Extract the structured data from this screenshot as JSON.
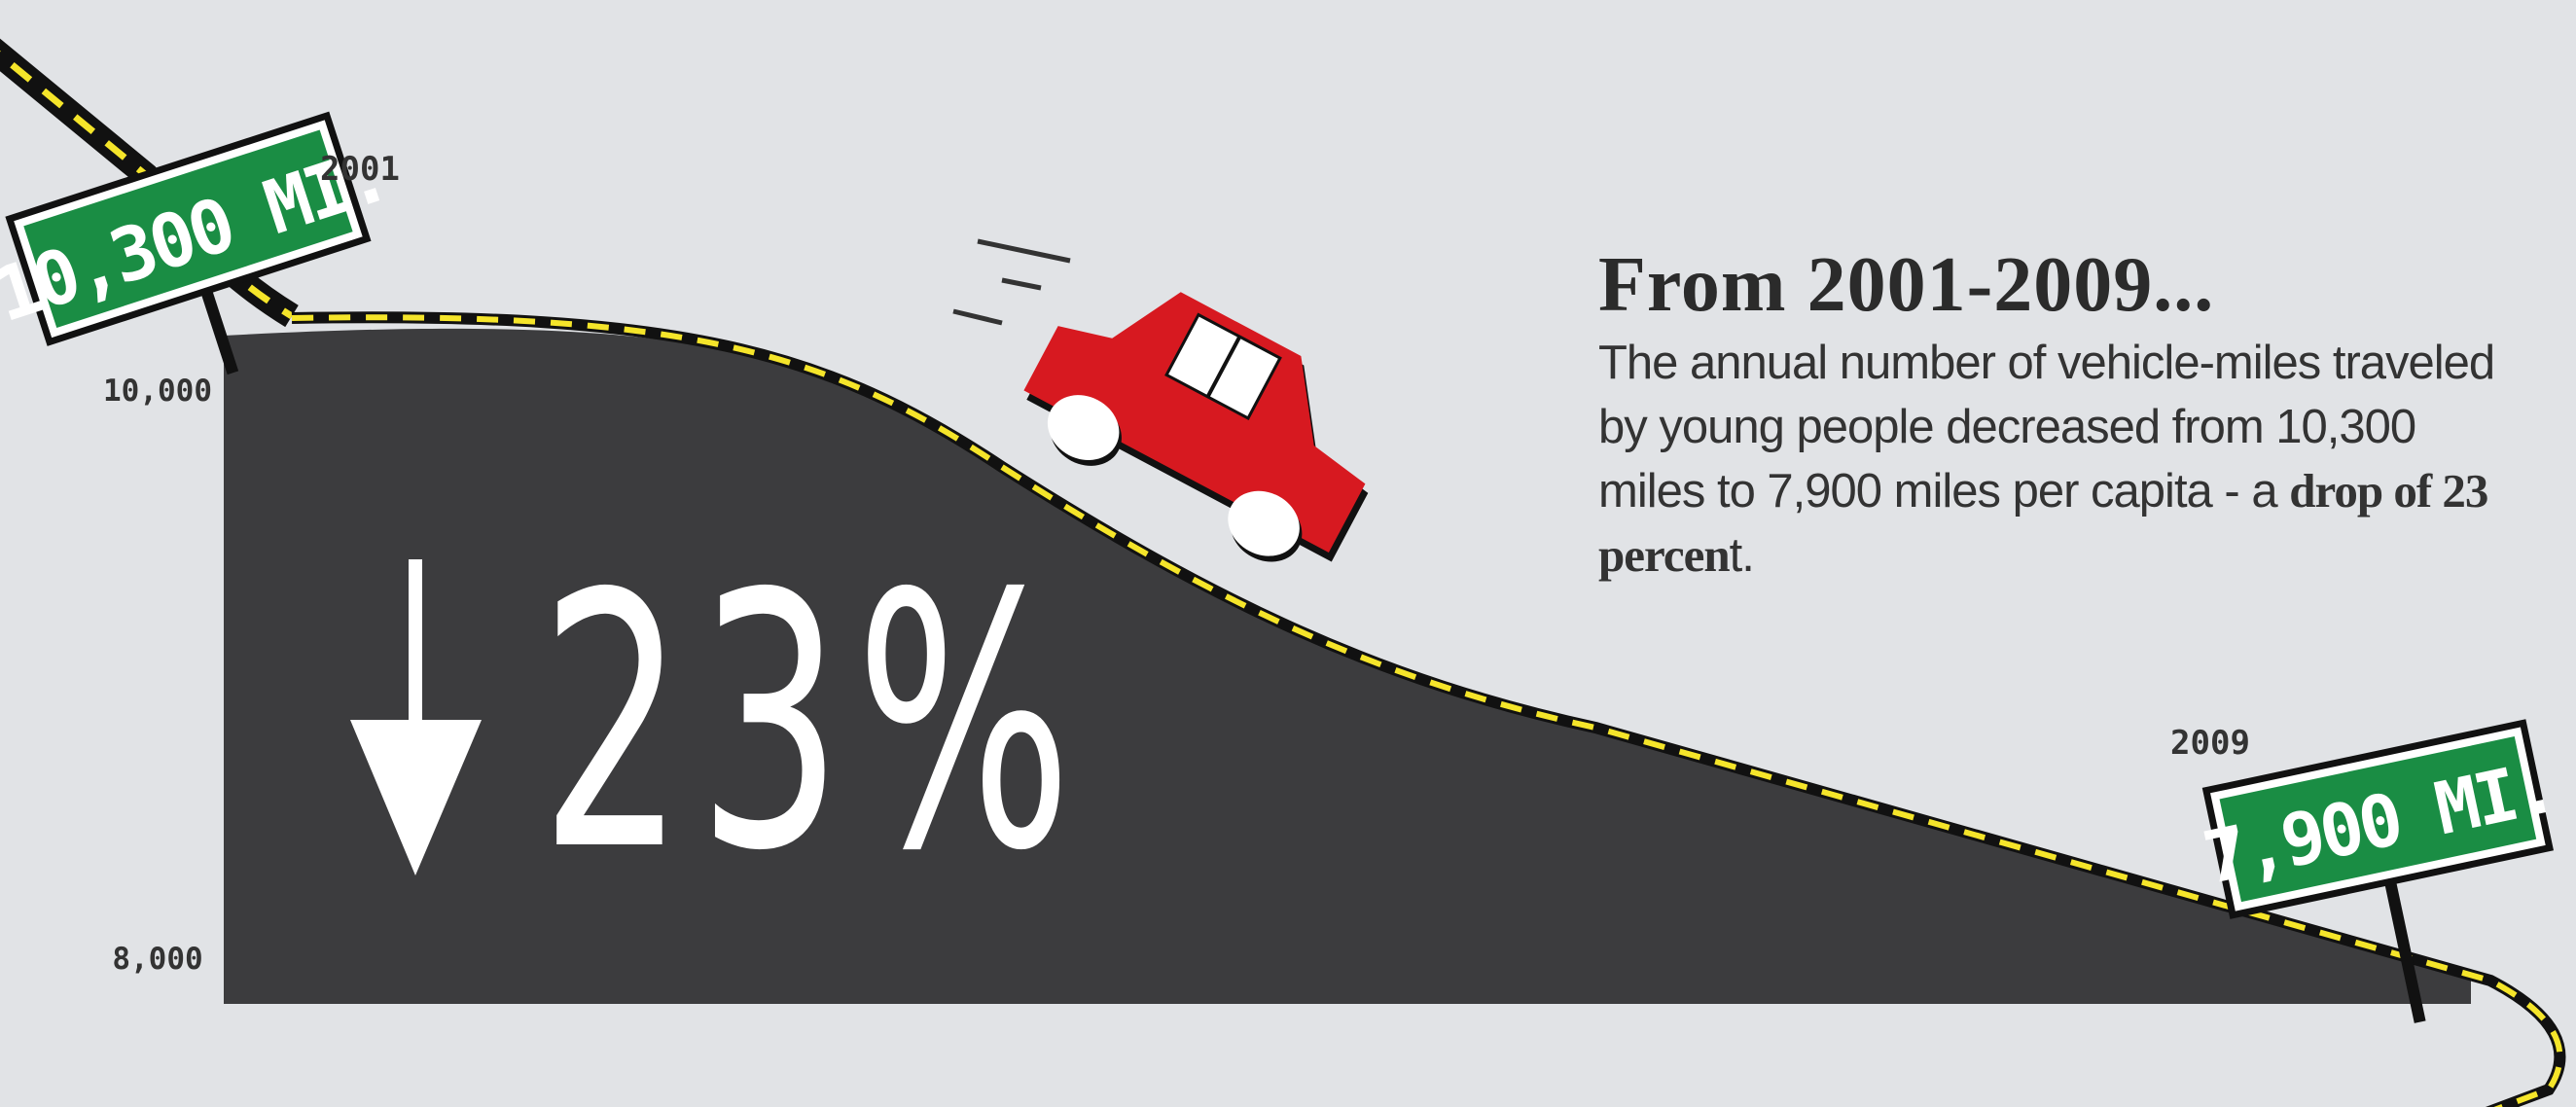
{
  "chart_data": {
    "type": "area",
    "x": [
      "2001",
      "2009"
    ],
    "values": [
      10300,
      7900
    ],
    "y_ticks": [
      "10,000",
      "8,000"
    ],
    "ylim": [
      8000,
      10300
    ],
    "start_sign": "10,300 MI.",
    "end_sign": "7,900 MI.",
    "start_year": "2001",
    "end_year": "2009",
    "big_stat": "23%",
    "grid": false
  },
  "text": {
    "headline": "From  2001-2009...",
    "body_prefix": "The annual number of vehicle-miles traveled by young people decreased from 10,300 miles to 7,900 miles per capita - a ",
    "body_bold": "drop of 23 percen",
    "body_suffix": "t."
  },
  "colors": {
    "background": "#e1e3e6",
    "road": "#3c3c3e",
    "lane_stripe": "#f5e52a",
    "sign_green": "#1a8d44",
    "car_red": "#d71920",
    "text": "#2b2b2b"
  }
}
